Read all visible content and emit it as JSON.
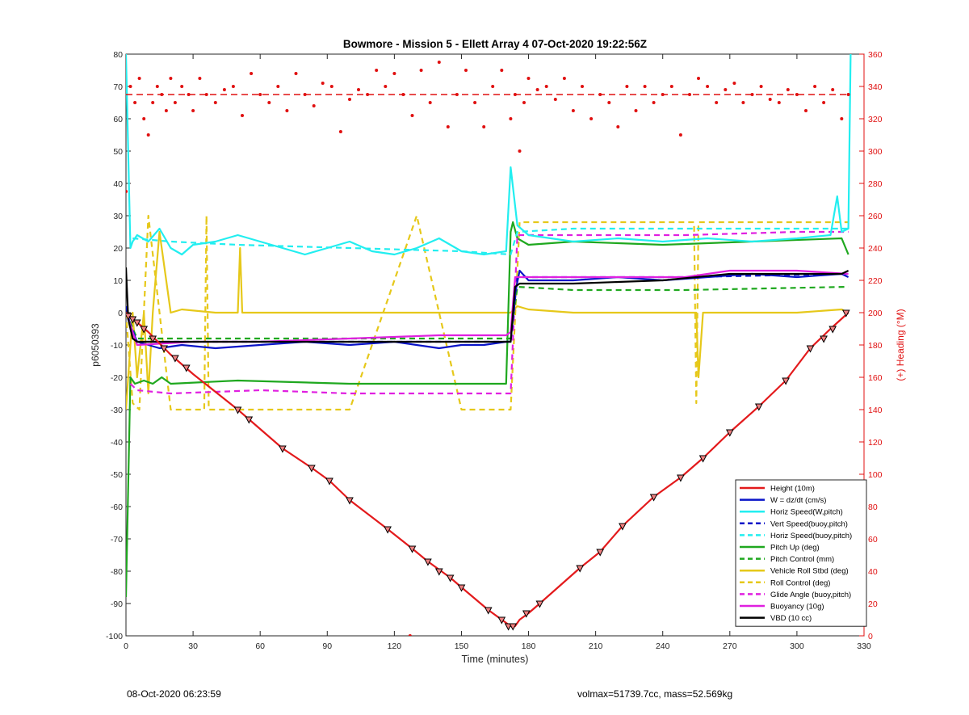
{
  "footer": {
    "timestamp": "08-Oct-2020 06:23:59",
    "vehicle_info": "volmax=51739.7cc, mass=52.569kg"
  },
  "chart_data": {
    "type": "line",
    "title": "Bowmore - Mission 5 - Ellett Array 4 07-Oct-2020 19:22:56Z",
    "xlabel": "Time (minutes)",
    "ylabel": "p6050393",
    "y2label": "(+) Heading (°M)",
    "xlim": [
      0,
      330
    ],
    "ylim": [
      -100,
      80
    ],
    "y2lim": [
      0,
      360
    ],
    "xticks": [
      0,
      30,
      60,
      90,
      120,
      150,
      180,
      210,
      240,
      270,
      300,
      330
    ],
    "yticks": [
      -100,
      -90,
      -80,
      -70,
      -60,
      -50,
      -40,
      -30,
      -20,
      -10,
      0,
      10,
      20,
      30,
      40,
      50,
      60,
      70,
      80
    ],
    "y2ticks": [
      0,
      20,
      40,
      60,
      80,
      100,
      120,
      140,
      160,
      180,
      200,
      220,
      240,
      260,
      280,
      300,
      320,
      340,
      360
    ],
    "grid": false,
    "legend_position": "bottom-right",
    "colors": {
      "height": "#e31a1c",
      "w": "#0a14c8",
      "horiz_speed": "#22eef0",
      "pitch": "#1fa81f",
      "roll": "#e6c81a",
      "glide": "#e020e0",
      "buoyancy": "#e020e0",
      "vbd": "#000000",
      "heading": "#e01010"
    },
    "series": [
      {
        "key": "height",
        "name": "Height (10m)",
        "style": "solid",
        "x": [
          0,
          5,
          10,
          20,
          30,
          50,
          55,
          70,
          83,
          91,
          100,
          117,
          128,
          135,
          145,
          150,
          162,
          168,
          172,
          174,
          176,
          180,
          185,
          203,
          212,
          222,
          236,
          248,
          258,
          270,
          283,
          295,
          306,
          315,
          323
        ],
        "y": [
          0,
          -3,
          -6,
          -13,
          -19,
          -30,
          -33,
          -42,
          -48,
          -52,
          -58,
          -67,
          -73,
          -77,
          -82,
          -85,
          -92,
          -95,
          -97,
          -97,
          -95,
          -93,
          -90,
          -79,
          -74,
          -66,
          -57,
          -51,
          -45,
          -37,
          -29,
          -21,
          -11,
          -5,
          0
        ]
      },
      {
        "key": "w",
        "name": "W = dz/dt (cm/s)",
        "style": "solid",
        "x": [
          0,
          2,
          5,
          10,
          15,
          25,
          40,
          60,
          80,
          100,
          120,
          140,
          150,
          160,
          170,
          172,
          174,
          176,
          180,
          200,
          220,
          240,
          260,
          280,
          300,
          320,
          323
        ],
        "y": [
          2,
          -4,
          -9,
          -10,
          -11,
          -10,
          -11,
          -10,
          -9,
          -10,
          -9,
          -11,
          -10,
          -10,
          -9,
          -9,
          6,
          13,
          10,
          10,
          11,
          10,
          11,
          12,
          11,
          12,
          11
        ]
      },
      {
        "key": "horiz_speed",
        "name": "Horiz Speed(W,pitch)",
        "style": "solid",
        "x": [
          0,
          2,
          3,
          5,
          10,
          15,
          20,
          25,
          30,
          40,
          50,
          60,
          70,
          80,
          90,
          100,
          110,
          120,
          130,
          140,
          150,
          160,
          170,
          172,
          175,
          180,
          200,
          220,
          240,
          260,
          280,
          300,
          315,
          318,
          320,
          323,
          324
        ],
        "y": [
          80,
          20,
          22,
          24,
          22,
          26,
          20,
          18,
          21,
          22,
          24,
          22,
          20,
          18,
          20,
          22,
          19,
          18,
          20,
          23,
          19,
          18,
          19,
          45,
          27,
          24,
          22,
          23,
          22,
          23,
          22,
          23,
          24,
          36,
          25,
          26,
          80
        ]
      },
      {
        "key": "vert_speed_buoy",
        "name": "Vert Speed(buoy,pitch)",
        "style": "dashed",
        "x": [
          0,
          5,
          20,
          60,
          100,
          140,
          172,
          175,
          200,
          250,
          323
        ],
        "y": [
          0,
          -9,
          -9,
          -9,
          -9,
          -9,
          -9,
          11,
          11,
          11,
          12
        ]
      },
      {
        "key": "horiz_speed_buoy",
        "name": "Horiz Speed(buoy,pitch)",
        "style": "dashed",
        "x": [
          3,
          20,
          50,
          100,
          150,
          172,
          175,
          200,
          250,
          300,
          323
        ],
        "y": [
          23,
          22,
          21,
          20,
          19,
          18,
          25,
          26,
          26,
          26,
          26
        ]
      },
      {
        "key": "pitch",
        "name": "Pitch Up (deg)",
        "style": "solid",
        "x": [
          0,
          2,
          4,
          8,
          12,
          16,
          20,
          50,
          100,
          150,
          170,
          172,
          173,
          175,
          180,
          200,
          240,
          280,
          320,
          323
        ],
        "y": [
          -88,
          -20,
          -22,
          -21,
          -22,
          -20,
          -22,
          -21,
          -22,
          -22,
          -22,
          25,
          28,
          23,
          21,
          22,
          21,
          22,
          23,
          18
        ]
      },
      {
        "key": "pitch_control",
        "name": "Pitch Control (mm)",
        "style": "dashed",
        "x": [
          0,
          5,
          30,
          100,
          172,
          175,
          200,
          250,
          323
        ],
        "y": [
          0,
          -8,
          -8,
          -8,
          -8,
          8,
          7,
          7,
          8
        ]
      },
      {
        "key": "roll",
        "name": "Vehicle Roll Stbd (deg)",
        "style": "solid",
        "x": [
          0,
          3,
          5,
          8,
          10,
          12,
          15,
          20,
          25,
          40,
          50,
          51,
          52,
          60,
          80,
          90,
          100,
          120,
          130,
          140,
          150,
          160,
          170,
          172,
          175,
          180,
          200,
          220,
          240,
          255,
          256,
          258,
          280,
          300,
          320,
          323
        ],
        "y": [
          -30,
          0,
          -20,
          0,
          -25,
          0,
          25,
          0,
          1,
          0,
          0,
          20,
          0,
          0,
          0,
          0,
          0,
          0,
          0,
          0,
          0,
          0,
          0,
          0,
          2,
          1,
          0,
          0,
          0,
          0,
          -20,
          0,
          0,
          0,
          1,
          0
        ]
      },
      {
        "key": "roll_control",
        "name": "Roll Control (deg)",
        "style": "dashed",
        "x": [
          0,
          3,
          6,
          10,
          20,
          35,
          36,
          37,
          60,
          100,
          130,
          150,
          172,
          176,
          200,
          254,
          255,
          256,
          300,
          323
        ],
        "y": [
          0,
          -28,
          -30,
          30,
          -30,
          -30,
          30,
          -30,
          -30,
          -30,
          30,
          -30,
          -30,
          28,
          28,
          28,
          -28,
          28,
          28,
          28
        ]
      },
      {
        "key": "glide_angle",
        "name": "Glide Angle (buoy,pitch)",
        "style": "dashed",
        "x": [
          2,
          5,
          20,
          60,
          100,
          140,
          172,
          175,
          200,
          250,
          300,
          323
        ],
        "y": [
          -22,
          -24,
          -25,
          -24,
          -25,
          -25,
          -25,
          24,
          24,
          24,
          25,
          25
        ]
      },
      {
        "key": "buoyancy",
        "name": "Buoyancy (10g)",
        "style": "solid",
        "x": [
          0,
          5,
          30,
          60,
          100,
          140,
          170,
          172,
          174,
          200,
          250,
          270,
          300,
          323
        ],
        "y": [
          0,
          -10,
          -9,
          -9,
          -8,
          -7,
          -7,
          -6,
          11,
          11,
          11,
          13,
          13,
          12
        ]
      },
      {
        "key": "vbd",
        "name": "VBD (10 cc)",
        "style": "solid",
        "x": [
          0,
          1,
          3,
          5,
          10,
          30,
          60,
          100,
          140,
          172,
          174,
          176,
          200,
          240,
          270,
          300,
          320,
          323
        ],
        "y": [
          14,
          -2,
          -8,
          -9,
          -9,
          -9,
          -9,
          -9,
          -9,
          -9,
          8,
          9,
          9,
          10,
          12,
          12,
          12,
          13
        ]
      }
    ],
    "heading_series": {
      "name": "(+) Heading (°M)",
      "axis": "right",
      "marker": "dot",
      "mean": 335,
      "x": [
        0,
        2,
        4,
        6,
        8,
        10,
        12,
        14,
        16,
        18,
        20,
        22,
        25,
        28,
        30,
        33,
        36,
        40,
        44,
        48,
        52,
        56,
        60,
        64,
        68,
        72,
        76,
        80,
        84,
        88,
        92,
        96,
        100,
        104,
        108,
        112,
        116,
        120,
        124,
        128,
        132,
        136,
        140,
        144,
        148,
        152,
        156,
        160,
        164,
        168,
        172,
        174,
        176,
        178,
        180,
        184,
        188,
        192,
        196,
        200,
        204,
        208,
        212,
        216,
        220,
        224,
        228,
        232,
        236,
        240,
        244,
        248,
        252,
        256,
        260,
        264,
        268,
        272,
        276,
        280,
        284,
        288,
        292,
        296,
        300,
        304,
        308,
        312,
        316,
        320,
        323
      ],
      "y": [
        275,
        340,
        330,
        345,
        320,
        310,
        330,
        340,
        335,
        325,
        345,
        330,
        340,
        335,
        325,
        345,
        335,
        330,
        338,
        340,
        322,
        348,
        335,
        330,
        340,
        325,
        348,
        335,
        328,
        342,
        340,
        312,
        332,
        338,
        335,
        350,
        340,
        348,
        335,
        322,
        350,
        330,
        355,
        315,
        335,
        350,
        330,
        315,
        340,
        350,
        320,
        335,
        300,
        330,
        345,
        338,
        340,
        332,
        345,
        325,
        340,
        320,
        335,
        330,
        315,
        340,
        325,
        340,
        330,
        335,
        340,
        310,
        335,
        345,
        340,
        330,
        338,
        342,
        330,
        335,
        340,
        332,
        330,
        338,
        335,
        325,
        340,
        330,
        338,
        320,
        335
      ]
    },
    "heading_outliers": {
      "x": [
        127
      ],
      "y": [
        0
      ]
    },
    "markers": {
      "x": [
        1,
        3,
        5,
        8,
        12,
        17,
        22,
        27,
        50,
        55,
        70,
        83,
        91,
        100,
        117,
        128,
        135,
        140,
        145,
        150,
        162,
        168,
        171,
        173,
        179,
        185,
        203,
        212,
        222,
        236,
        248,
        258,
        270,
        283,
        295,
        306,
        312,
        316,
        322
      ],
      "y": [
        -1,
        -2,
        -3,
        -5,
        -8,
        -11,
        -14,
        -17,
        -30,
        -33,
        -42,
        -48,
        -52,
        -58,
        -67,
        -73,
        -77,
        -80,
        -82,
        -85,
        -92,
        -95,
        -97,
        -97,
        -93,
        -90,
        -79,
        -74,
        -66,
        -57,
        -51,
        -45,
        -37,
        -29,
        -21,
        -11,
        -8,
        -5,
        0
      ]
    }
  }
}
